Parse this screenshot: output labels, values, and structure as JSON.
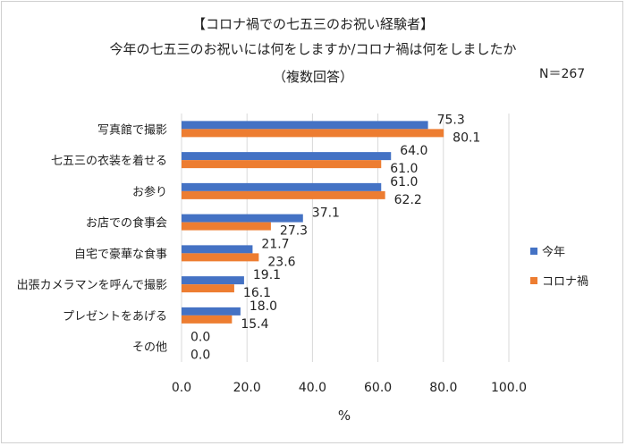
{
  "chart_data": {
    "type": "bar",
    "orientation": "horizontal",
    "title_lines": [
      "【コロナ禍での七五三のお祝い経験者】",
      "今年の七五三のお祝いには何をしますか/コロナ禍は何をしましたか",
      "（複数回答）"
    ],
    "n_label": "N＝267",
    "xlabel": "%",
    "ylabel": "",
    "xlim": [
      0,
      100
    ],
    "xticks": [
      "0.0",
      "20.0",
      "40.0",
      "60.0",
      "80.0",
      "100.0"
    ],
    "grid": true,
    "legend_position": "right",
    "categories": [
      "写真館で撮影",
      "七五三の衣装を着せる",
      "お参り",
      "お店での食事会",
      "自宅で豪華な食事",
      "出張カメラマンを呼んで撮影",
      "プレゼントをあげる",
      "その他"
    ],
    "series": [
      {
        "name": "今年",
        "color": "#4472C4",
        "values": [
          75.3,
          64.0,
          61.0,
          37.1,
          21.7,
          19.1,
          18.0,
          0.0
        ],
        "labels": [
          "75.3",
          "64.0",
          "61.0",
          "37.1",
          "21.7",
          "19.1",
          "18.0",
          "0.0"
        ]
      },
      {
        "name": "コロナ禍",
        "color": "#ED7D31",
        "values": [
          80.1,
          61.0,
          62.2,
          27.3,
          23.6,
          16.1,
          15.4,
          0.0
        ],
        "labels": [
          "80.1",
          "61.0",
          "62.2",
          "27.3",
          "23.6",
          "16.1",
          "15.4",
          "0.0"
        ]
      }
    ]
  }
}
